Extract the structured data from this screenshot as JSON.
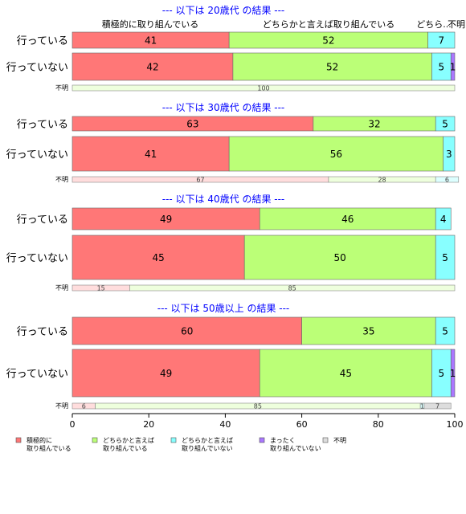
{
  "chart_data": {
    "type": "bar",
    "orientation": "horizontal",
    "stacked": true,
    "xlim": [
      0,
      100
    ],
    "x_ticks": [
      0,
      20,
      40,
      60,
      80,
      100
    ],
    "header_labels": [
      "積極的に取り組んでいる",
      "どちらかと言えば取り組んでいる",
      "どちら...",
      "不明"
    ],
    "legend": {
      "placement": "bottom",
      "entries": [
        {
          "label": "積極的に\n取り組んでいる",
          "color": "#ff7777"
        },
        {
          "label": "どちらかと言えば\n取り組んでいる",
          "color": "#bbff77"
        },
        {
          "label": "どちらかと言えば\n取り組んでいない",
          "color": "#88ffff"
        },
        {
          "label": "まったく\n取り組んでいない",
          "color": "#aa77ff"
        },
        {
          "label": "不明",
          "color": "#dddddd"
        }
      ]
    },
    "panels": [
      {
        "title": "--- 以下は 20歳代 の結果 ---",
        "rows": [
          {
            "label": "行っている",
            "values": [
              41,
              52,
              7,
              0
            ]
          },
          {
            "label": "行っていない",
            "values": [
              42,
              52,
              5,
              1
            ]
          }
        ],
        "unknown": {
          "label": "不明",
          "values": [
            0,
            100,
            0,
            0,
            0
          ]
        }
      },
      {
        "title": "--- 以下は 30歳代 の結果 ---",
        "rows": [
          {
            "label": "行っている",
            "values": [
              63,
              32,
              5,
              0
            ]
          },
          {
            "label": "行っていない",
            "values": [
              41,
              56,
              3,
              0
            ]
          }
        ],
        "unknown": {
          "label": "不明",
          "values": [
            67,
            28,
            6,
            0,
            0
          ]
        }
      },
      {
        "title": "--- 以下は 40歳代 の結果 ---",
        "rows": [
          {
            "label": "行っている",
            "values": [
              49,
              46,
              4,
              0
            ]
          },
          {
            "label": "行っていない",
            "values": [
              45,
              50,
              5,
              0
            ]
          }
        ],
        "unknown": {
          "label": "不明",
          "values": [
            15,
            85,
            0,
            0,
            0
          ]
        }
      },
      {
        "title": "--- 以下は 50歳以上 の結果 ---",
        "rows": [
          {
            "label": "行っている",
            "values": [
              60,
              35,
              5,
              0
            ]
          },
          {
            "label": "行っていない",
            "values": [
              49,
              45,
              5,
              1
            ]
          }
        ],
        "unknown": {
          "label": "不明",
          "values": [
            6,
            85,
            1,
            0,
            7
          ]
        }
      }
    ]
  }
}
